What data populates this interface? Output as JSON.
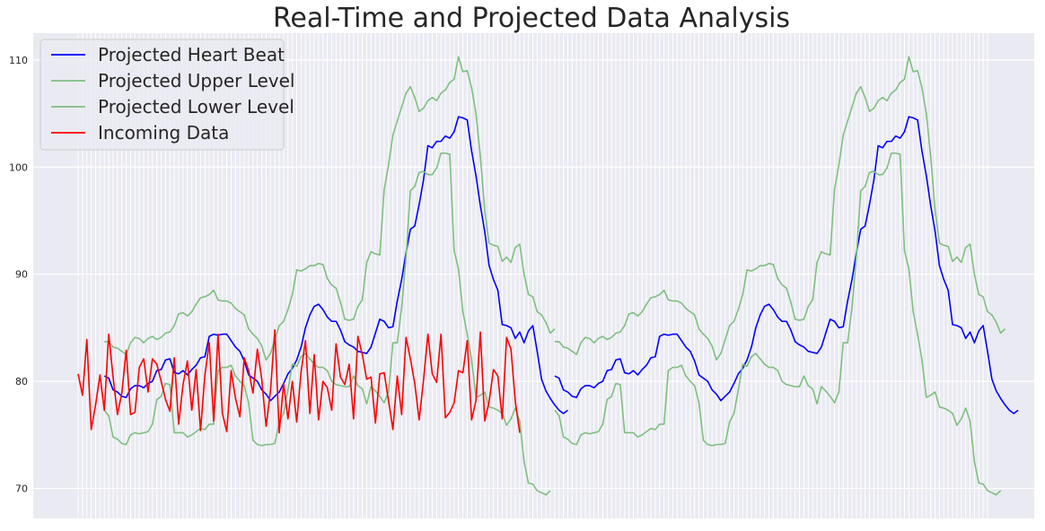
{
  "chart_data": {
    "type": "line",
    "title": "Real-Time and Projected Data Analysis",
    "xlabel": "",
    "ylabel": "",
    "x_index_range": [
      0,
      208
    ],
    "ylim": [
      67.2,
      112.5
    ],
    "y_ticks": [
      70,
      80,
      90,
      100,
      110
    ],
    "x_tick_labels_shown": false,
    "grid": true,
    "legend_position": "top-left",
    "colors": {
      "background": "#eaeaf2",
      "grid": "#ffffff",
      "projected": "#0000ff",
      "bounds": "#7fbf7f",
      "incoming": "#ff0000"
    },
    "series": [
      {
        "name": "Projected Heart Beat",
        "color": "#0000ff",
        "segments": [
          {
            "x_start": 6,
            "values": [
              80.5,
              80.3,
              79.2,
              79.0,
              78.6,
              78.5,
              79.3,
              79.6,
              79.6,
              79.4,
              79.8,
              80.0,
              81.0,
              81.1,
              82.0,
              82.1,
              80.8,
              80.7,
              81.0,
              80.6,
              81.1,
              81.5,
              82.2,
              82.3,
              84.2,
              84.4,
              84.3,
              84.4,
              84.4,
              83.8,
              83.2,
              82.8,
              81.9,
              80.6,
              80.3,
              80.0,
              79.2,
              78.8,
              78.2,
              78.6,
              79.0,
              79.8,
              80.7,
              81.2,
              82.0,
              83.2,
              85.0,
              86.2,
              87.0,
              87.2,
              86.7,
              86.0,
              85.6,
              85.6,
              84.8,
              83.7,
              83.4,
              83.2,
              82.8,
              82.7,
              82.6,
              83.2,
              84.5,
              85.8,
              85.6,
              85.0,
              85.1,
              87.5,
              89.5,
              92.0,
              94.2,
              94.5,
              96.5,
              98.8,
              102.0,
              101.8,
              102.4,
              102.4,
              102.9,
              102.7,
              103.3,
              104.7,
              104.6,
              104.4,
              101.5,
              99.2,
              96.4,
              94.0,
              90.8,
              89.5,
              88.5,
              85.3,
              85.2,
              85.0,
              84.0,
              84.6,
              83.6,
              84.7,
              85.2,
              82.8,
              80.2,
              79.1,
              78.4,
              77.8,
              77.3,
              77.0,
              77.3
            ]
          },
          {
            "x_start": 109,
            "values": [
              80.5,
              80.3,
              79.2,
              79.0,
              78.6,
              78.5,
              79.3,
              79.6,
              79.6,
              79.4,
              79.8,
              80.0,
              81.0,
              81.1,
              82.0,
              82.1,
              80.8,
              80.7,
              81.0,
              80.6,
              81.1,
              81.5,
              82.2,
              82.3,
              84.2,
              84.4,
              84.3,
              84.4,
              84.4,
              83.8,
              83.2,
              82.8,
              81.9,
              80.6,
              80.3,
              80.0,
              79.2,
              78.8,
              78.2,
              78.6,
              79.0,
              79.8,
              80.7,
              81.2,
              82.0,
              83.2,
              85.0,
              86.2,
              87.0,
              87.2,
              86.7,
              86.0,
              85.6,
              85.6,
              84.8,
              83.7,
              83.4,
              83.2,
              82.8,
              82.7,
              82.6,
              83.2,
              84.5,
              85.8,
              85.6,
              85.0,
              85.1,
              87.5,
              89.5,
              92.0,
              94.2,
              94.5,
              96.5,
              98.8,
              102.0,
              101.8,
              102.4,
              102.4,
              102.9,
              102.7,
              103.3,
              104.7,
              104.6,
              104.4,
              101.5,
              99.2,
              96.4,
              94.0,
              90.8,
              89.5,
              88.5,
              85.3,
              85.2,
              85.0,
              84.0,
              84.6,
              83.6,
              84.7,
              85.2,
              82.8,
              80.2,
              79.1,
              78.4,
              77.8,
              77.3,
              77.0,
              77.3
            ]
          }
        ]
      },
      {
        "name": "Projected Upper Level",
        "color": "#7fbf7f",
        "segments": [
          {
            "x_start": 6,
            "values": [
              83.7,
              83.7,
              83.2,
              83.1,
              82.8,
              82.5,
              83.6,
              84.1,
              84.0,
              83.6,
              84.0,
              84.2,
              83.9,
              84.1,
              84.5,
              84.6,
              85.2,
              86.3,
              86.4,
              86.1,
              86.5,
              87.2,
              87.8,
              87.9,
              88.1,
              88.5,
              87.6,
              87.5,
              87.5,
              87.3,
              86.8,
              86.5,
              86.2,
              84.9,
              84.4,
              84.0,
              83.3,
              82.0,
              82.6,
              83.9,
              85.2,
              85.6,
              86.7,
              88.1,
              90.4,
              90.3,
              90.5,
              90.8,
              90.8,
              91.0,
              90.9,
              89.6,
              89.0,
              88.7,
              87.4,
              85.8,
              85.7,
              85.8,
              87.0,
              87.6,
              91.1,
              92.1,
              91.9,
              91.8,
              97.9,
              100.2,
              103.0,
              104.3,
              105.6,
              106.9,
              107.5,
              106.5,
              105.2,
              105.5,
              106.2,
              106.5,
              106.2,
              106.9,
              107.2,
              107.9,
              108.2,
              110.3,
              108.9,
              109.0,
              107.4,
              105.0,
              101.0,
              96.0,
              92.9,
              92.7,
              92.6,
              91.2,
              91.6,
              91.1,
              92.5,
              92.8,
              90.0,
              88.1,
              87.9,
              86.5,
              86.2,
              85.5,
              84.5,
              84.9
            ]
          },
          {
            "x_start": 109,
            "values": [
              83.7,
              83.7,
              83.2,
              83.1,
              82.8,
              82.5,
              83.6,
              84.1,
              84.0,
              83.6,
              84.0,
              84.2,
              83.9,
              84.1,
              84.5,
              84.6,
              85.2,
              86.3,
              86.4,
              86.1,
              86.5,
              87.2,
              87.8,
              87.9,
              88.1,
              88.5,
              87.6,
              87.5,
              87.5,
              87.3,
              86.8,
              86.5,
              86.2,
              84.9,
              84.4,
              84.0,
              83.3,
              82.0,
              82.6,
              83.9,
              85.2,
              85.6,
              86.7,
              88.1,
              90.4,
              90.3,
              90.5,
              90.8,
              90.8,
              91.0,
              90.9,
              89.6,
              89.0,
              88.7,
              87.4,
              85.8,
              85.7,
              85.8,
              87.0,
              87.6,
              91.1,
              92.1,
              91.9,
              91.8,
              97.9,
              100.2,
              103.0,
              104.3,
              105.6,
              106.9,
              107.5,
              106.5,
              105.2,
              105.5,
              106.2,
              106.5,
              106.2,
              106.9,
              107.2,
              107.9,
              108.2,
              110.3,
              108.9,
              109.0,
              107.4,
              105.0,
              101.0,
              96.0,
              92.9,
              92.7,
              92.6,
              91.2,
              91.6,
              91.1,
              92.5,
              92.8,
              90.0,
              88.1,
              87.9,
              86.5,
              86.2,
              85.5,
              84.5,
              84.9
            ]
          }
        ]
      },
      {
        "name": "Projected Lower Level",
        "color": "#7fbf7f",
        "segments": [
          {
            "x_start": 6,
            "values": [
              77.3,
              76.8,
              74.8,
              74.6,
              74.2,
              74.1,
              75.0,
              75.2,
              75.1,
              75.2,
              75.3,
              76.0,
              78.3,
              78.6,
              79.8,
              79.7,
              75.2,
              75.2,
              75.2,
              74.8,
              75.0,
              75.3,
              75.6,
              75.5,
              76.0,
              76.0,
              81.0,
              81.3,
              81.3,
              81.5,
              80.5,
              80.0,
              79.6,
              78.0,
              74.5,
              74.1,
              74.0,
              74.1,
              74.1,
              74.2,
              76.2,
              77.0,
              79.2,
              81.6,
              81.4,
              82.3,
              82.6,
              82.1,
              81.6,
              81.3,
              81.3,
              81.0,
              80.0,
              79.7,
              79.6,
              79.5,
              79.5,
              80.5,
              79.6,
              79.3,
              77.9,
              79.5,
              79.1,
              78.6,
              78.0,
              79.0,
              83.6,
              83.6,
              86.9,
              91.6,
              97.8,
              98.2,
              99.5,
              99.6,
              99.3,
              99.3,
              99.9,
              101.3,
              101.3,
              101.2,
              92.2,
              90.5,
              86.5,
              84.4,
              82.0,
              78.5,
              78.7,
              79.0,
              77.6,
              77.5,
              77.3,
              77.0,
              75.9,
              76.5,
              77.5,
              76.3,
              72.5,
              70.5,
              70.4,
              69.8,
              69.6,
              69.4,
              69.8
            ]
          },
          {
            "x_start": 109,
            "values": [
              77.3,
              76.8,
              74.8,
              74.6,
              74.2,
              74.1,
              75.0,
              75.2,
              75.1,
              75.2,
              75.3,
              76.0,
              78.3,
              78.6,
              79.8,
              79.7,
              75.2,
              75.2,
              75.2,
              74.8,
              75.0,
              75.3,
              75.6,
              75.5,
              76.0,
              76.0,
              81.0,
              81.3,
              81.3,
              81.5,
              80.5,
              80.0,
              79.6,
              78.0,
              74.5,
              74.1,
              74.0,
              74.1,
              74.1,
              74.2,
              76.2,
              77.0,
              79.2,
              81.6,
              81.4,
              82.3,
              82.6,
              82.1,
              81.6,
              81.3,
              81.3,
              81.0,
              80.0,
              79.7,
              79.6,
              79.5,
              79.5,
              80.5,
              79.6,
              79.3,
              77.9,
              79.5,
              79.1,
              78.6,
              78.0,
              79.0,
              83.6,
              83.6,
              86.9,
              91.6,
              97.8,
              98.2,
              99.5,
              99.6,
              99.3,
              99.3,
              99.9,
              101.3,
              101.3,
              101.2,
              92.2,
              90.5,
              86.5,
              84.4,
              82.0,
              78.5,
              78.7,
              79.0,
              77.6,
              77.5,
              77.3,
              77.0,
              75.9,
              76.5,
              77.5,
              76.3,
              72.5,
              70.5,
              70.4,
              69.8,
              69.6,
              69.4,
              69.8
            ]
          }
        ]
      },
      {
        "name": "Incoming Data",
        "color": "#ff0000",
        "segments": [
          {
            "x_start": 0,
            "values": [
              80.7,
              78.7,
              83.9,
              75.5,
              77.8,
              80.6,
              77.3,
              84.4,
              80.4,
              76.9,
              78.9,
              82.9,
              76.9,
              77.1,
              81.3,
              82.1,
              79.0,
              82.1,
              81.6,
              80.0,
              78.3,
              77.2,
              82.2,
              76.0,
              79.7,
              81.9,
              77.3,
              81.1,
              75.4,
              80.6,
              83.6,
              76.3,
              84.4,
              77.0,
              75.3,
              81.0,
              78.4,
              76.7,
              82.2,
              81.0,
              78.9,
              83.0,
              80.2,
              75.8,
              79.1,
              84.8,
              75.2,
              79.8,
              76.5,
              80.0,
              76.2,
              80.9,
              83.8,
              77.0,
              82.5,
              76.4,
              80.0,
              79.4,
              77.3,
              83.5,
              80.4,
              79.7,
              81.6,
              76.5,
              84.2,
              82.5,
              80.2,
              80.4,
              76.1,
              80.7,
              80.8,
              78.2,
              75.5,
              80.5,
              76.9,
              84.1,
              82.1,
              79.8,
              76.4,
              80.1,
              84.4,
              80.7,
              79.9,
              84.4,
              76.6,
              77.1,
              78.0,
              81.0,
              80.8,
              83.8,
              76.4,
              78.2,
              84.6,
              76.3,
              78.1,
              81.1,
              80.5,
              76.5,
              84.1,
              83.0,
              78.1,
              75.2
            ]
          }
        ]
      }
    ]
  }
}
